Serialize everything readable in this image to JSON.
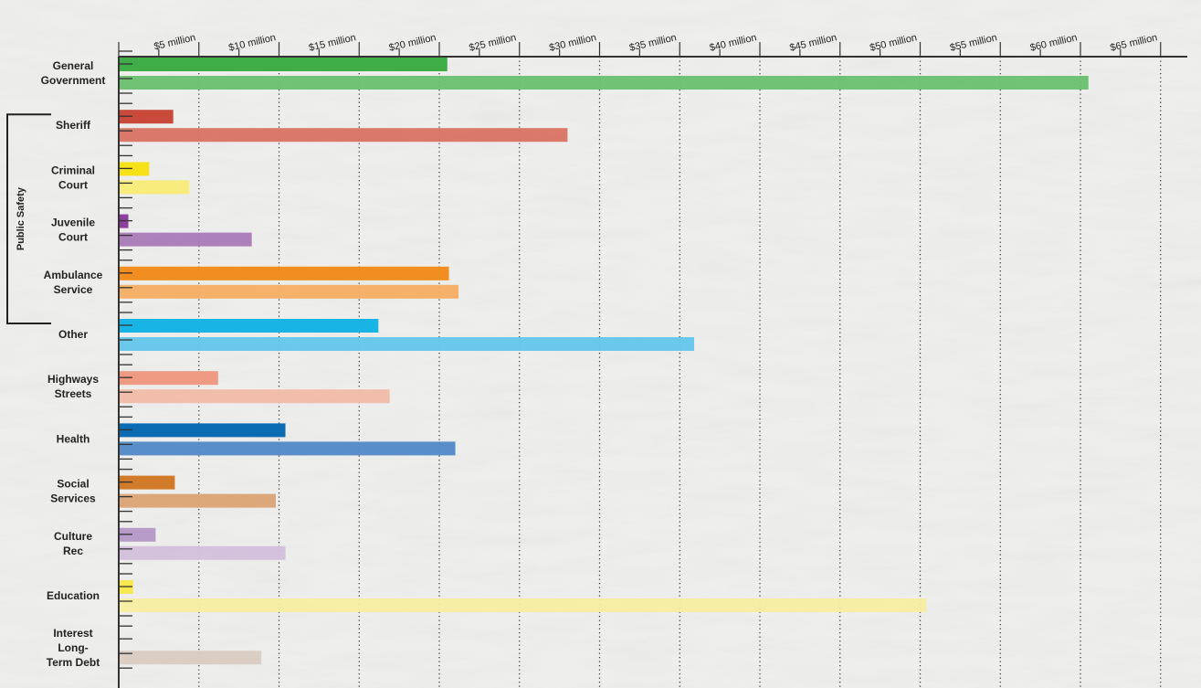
{
  "chart_data": {
    "type": "bar",
    "orientation": "horizontal",
    "title": "",
    "xlabel": "",
    "ylabel": "",
    "xlim": [
      0,
      65
    ],
    "x_unit": "million USD",
    "grid": "vertical dotted",
    "x_ticks": [
      {
        "value": 5,
        "label": "$5 million"
      },
      {
        "value": 10,
        "label": "$10 million"
      },
      {
        "value": 15,
        "label": "$15 million"
      },
      {
        "value": 20,
        "label": "$20 million"
      },
      {
        "value": 25,
        "label": "$25 million"
      },
      {
        "value": 30,
        "label": "$30 million"
      },
      {
        "value": 35,
        "label": "$35 million"
      },
      {
        "value": 40,
        "label": "$40 million"
      },
      {
        "value": 45,
        "label": "$45 million"
      },
      {
        "value": 50,
        "label": "$50 million"
      },
      {
        "value": 55,
        "label": "$55 million"
      },
      {
        "value": 60,
        "label": "$60 million"
      },
      {
        "value": 65,
        "label": "$65 million"
      }
    ],
    "group_bracket": {
      "label": "Public Safety",
      "from": "Sheriff",
      "to": "Other"
    },
    "categories": [
      {
        "label_lines": [
          "General",
          "Government"
        ],
        "values": [
          20.5,
          60.5
        ],
        "colors": [
          "#3fae49",
          "#6cc070"
        ]
      },
      {
        "label_lines": [
          "Sheriff"
        ],
        "values": [
          3.4,
          28.0
        ],
        "colors": [
          "#c9493b",
          "#d97363"
        ]
      },
      {
        "label_lines": [
          "Criminal",
          "Court"
        ],
        "values": [
          1.9,
          4.4
        ],
        "colors": [
          "#f7e21a",
          "#f8ec76"
        ]
      },
      {
        "label_lines": [
          "Juvenile",
          "Court"
        ],
        "values": [
          0.6,
          8.3
        ],
        "colors": [
          "#8d3e9e",
          "#a97ab8"
        ]
      },
      {
        "label_lines": [
          "Ambulance",
          "Service"
        ],
        "values": [
          20.6,
          21.2
        ],
        "colors": [
          "#f28d1f",
          "#f5ae62"
        ]
      },
      {
        "label_lines": [
          "Other"
        ],
        "values": [
          16.2,
          35.9
        ],
        "colors": [
          "#17b4e5",
          "#63c6ec"
        ]
      },
      {
        "label_lines": [
          "Highways",
          "Streets"
        ],
        "values": [
          6.2,
          16.9
        ],
        "colors": [
          "#ef9a82",
          "#f2bca9"
        ]
      },
      {
        "label_lines": [
          "Health"
        ],
        "values": [
          10.4,
          21.0
        ],
        "colors": [
          "#0b6cb4",
          "#5089c8"
        ]
      },
      {
        "label_lines": [
          "Social",
          "Services"
        ],
        "values": [
          3.5,
          9.8
        ],
        "colors": [
          "#d07a2a",
          "#dba375"
        ]
      },
      {
        "label_lines": [
          "Culture",
          "Rec"
        ],
        "values": [
          2.3,
          10.4
        ],
        "colors": [
          "#b79bc9",
          "#d3bfdc"
        ]
      },
      {
        "label_lines": [
          "Education"
        ],
        "values": [
          0.9,
          50.4
        ],
        "colors": [
          "#f8e84f",
          "#f5eea0"
        ]
      },
      {
        "label_lines": [
          "Interest",
          "Long-",
          "Term Debt"
        ],
        "values": [
          0,
          8.9
        ],
        "colors": [
          "#d9ccc2",
          "#d9ccc2"
        ]
      }
    ]
  }
}
